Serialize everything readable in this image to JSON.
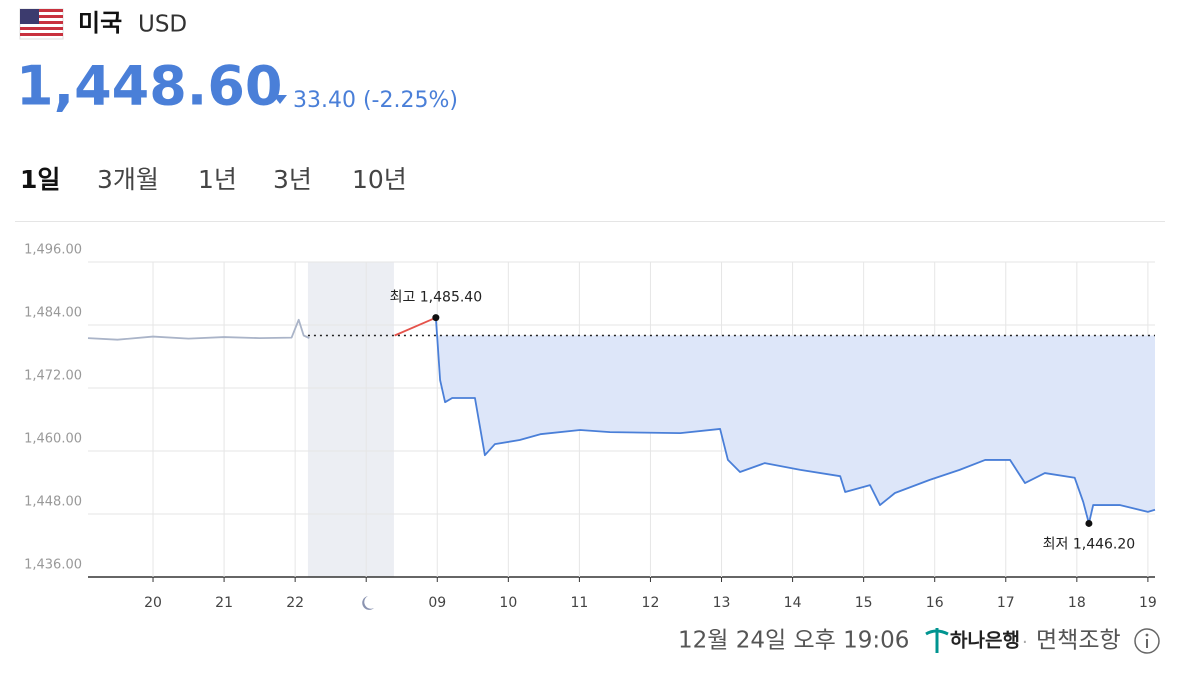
{
  "header": {
    "country": "미국",
    "currency": "USD",
    "price": "1,448.60",
    "change": "33.40 (-2.25%)"
  },
  "tabs": {
    "items": [
      "1일",
      "3개월",
      "1년",
      "3년",
      "10년"
    ],
    "active": 0
  },
  "chart_data": {
    "type": "line",
    "xlim": [
      -0.915,
      14.1
    ],
    "xticks": [
      {
        "value": 0,
        "label": "20"
      },
      {
        "value": 1,
        "label": "21"
      },
      {
        "value": 2,
        "label": "22"
      },
      {
        "value": 3,
        "label": null
      },
      {
        "value": 4,
        "label": "09"
      },
      {
        "value": 5,
        "label": "10"
      },
      {
        "value": 6,
        "label": "11"
      },
      {
        "value": 7,
        "label": "12"
      },
      {
        "value": 8,
        "label": "13"
      },
      {
        "value": 9,
        "label": "14"
      },
      {
        "value": 10,
        "label": "15"
      },
      {
        "value": 11,
        "label": "16"
      },
      {
        "value": 12,
        "label": "17"
      },
      {
        "value": 13,
        "label": "18"
      },
      {
        "value": 14,
        "label": "19"
      }
    ],
    "ylim": [
      1436,
      1496
    ],
    "yticks": [
      {
        "value": 1436,
        "label": "1,436.00"
      },
      {
        "value": 1448,
        "label": "1,448.00"
      },
      {
        "value": 1460,
        "label": "1,460.00"
      },
      {
        "value": 1472,
        "label": "1,472.00"
      },
      {
        "value": 1484,
        "label": "1,484.00"
      },
      {
        "value": 1496,
        "label": "1,496.00"
      }
    ],
    "grid": true,
    "reference": 1482,
    "shaded_range": [
      2.18,
      3.39
    ],
    "series": [
      {
        "color": "#aab4c8",
        "x": [
          -0.915,
          -0.5,
          0,
          0.5,
          1,
          1.5,
          1.95,
          2.05,
          2.12,
          2.2
        ],
        "values": [
          1481.5,
          1481.2,
          1481.8,
          1481.4,
          1481.7,
          1481.5,
          1481.6,
          1485,
          1482,
          1481.5
        ]
      },
      {
        "color": "#e5534b",
        "x": [
          3.4,
          3.98
        ],
        "values": [
          1482,
          1485.4
        ]
      },
      {
        "color": "#4a7fd8",
        "fill": "#dde6f9",
        "x": [
          3.98,
          4.0,
          4.04,
          4.11,
          4.21,
          4.53,
          4.67,
          4.81,
          5.16,
          5.45,
          6.01,
          6.43,
          7.42,
          7.98,
          8.09,
          8.26,
          8.61,
          9.11,
          9.67,
          9.74,
          10.09,
          10.23,
          10.44,
          10.93,
          11.35,
          11.71,
          12.06,
          12.27,
          12.55,
          12.97,
          13.09,
          13.17,
          13.23,
          13.61,
          14.0,
          14.1
        ],
        "values": [
          1485.4,
          1481.5,
          1473.5,
          1469.3,
          1470.1,
          1470.1,
          1459.2,
          1461.3,
          1462.1,
          1463.2,
          1464.0,
          1463.6,
          1463.4,
          1464.2,
          1458.3,
          1456.0,
          1457.7,
          1456.4,
          1455.2,
          1452.2,
          1453.5,
          1449.7,
          1452.0,
          1454.5,
          1456.4,
          1458.3,
          1458.3,
          1453.9,
          1455.8,
          1454.9,
          1450.3,
          1446.2,
          1449.7,
          1449.7,
          1448.4,
          1448.8
        ]
      }
    ],
    "annotations": [
      {
        "text": "최고 1,485.40",
        "x": 3.98,
        "y": 1485.4
      },
      {
        "text": "최저 1,446.20",
        "x": 13.17,
        "y": 1446.2
      }
    ]
  },
  "footer": {
    "timestamp": "12월 24일 오후 19:06",
    "bank": "하나은행",
    "separator": "·",
    "disclaimer": "면책조항"
  }
}
